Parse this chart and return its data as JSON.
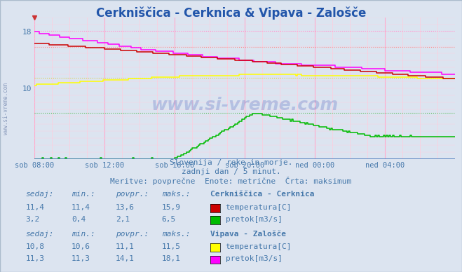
{
  "title": "Cerkniščica - Cerknica & Vipava - Zalošče",
  "title_color": "#2255aa",
  "bg_color": "#dce4f0",
  "plot_bg_color": "#dce4f0",
  "xlabel_color": "#4477aa",
  "x_labels": [
    "sob 08:00",
    "sob 12:00",
    "sob 16:00",
    "sob 20:00",
    "ned 00:00",
    "ned 04:00"
  ],
  "x_ticks": [
    0,
    48,
    96,
    144,
    192,
    240
  ],
  "x_max": 288,
  "y_min": 0,
  "y_max": 20,
  "y_ticks": [
    10,
    18
  ],
  "subtitle1": "Slovenija / reke in morje.",
  "subtitle2": "zadnji dan / 5 minut.",
  "subtitle3": "Meritve: povprečne  Enote: metrične  Črta: maksimum",
  "watermark": "www.si-vreme.com",
  "table1_header": "Cerkniščica - Cerknica",
  "table2_header": "Vipava - Zalošče",
  "col_headers": [
    "sedaj:",
    "min.:",
    "povpr.:",
    "maks.:"
  ],
  "table1_row1": [
    "11,4",
    "11,4",
    "13,6",
    "15,9"
  ],
  "table1_row2": [
    "3,2",
    "0,4",
    "2,1",
    "6,5"
  ],
  "table2_row1": [
    "10,8",
    "10,6",
    "11,1",
    "11,5"
  ],
  "table2_row2": [
    "11,3",
    "11,3",
    "14,1",
    "18,1"
  ],
  "label_temp1": "temperatura[C]",
  "label_flow1": "pretok[m3/s]",
  "label_temp2": "temperatura[C]",
  "label_flow2": "pretok[m3/s]",
  "color_temp1": "#cc0000",
  "color_flow1": "#00bb00",
  "color_temp2": "#ffff00",
  "color_flow2": "#ff00ff",
  "hline_temp1_max": 15.9,
  "hline_flow1_max": 6.5,
  "hline_temp2_max": 11.5,
  "hline_flow2_max": 18.1,
  "vgrid_minor_color": "#ffccdd",
  "vgrid_major_color": "#ffaacc",
  "hgrid_color": "#ffccdd",
  "axis_color": "#4477bb"
}
